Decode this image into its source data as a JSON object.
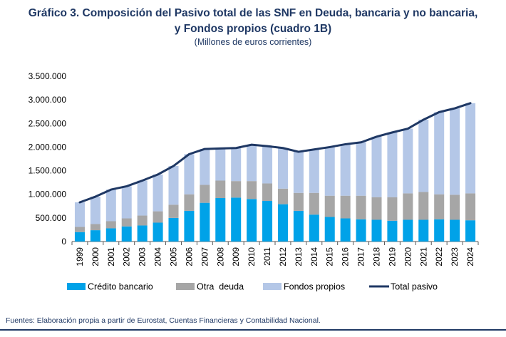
{
  "header": {
    "title_line1": "Gráfico 3. Composición del Pasivo total de las SNF en Deuda, bancaria y no bancaria,",
    "title_line2": "y Fondos propios (cuadro 1B)",
    "subtitle": "(Millones de euros corrientes)"
  },
  "footer": {
    "source": "Fuentes: Elaboración propia a partir de Eurostat, Cuentas Financieras y Contabilidad Nacional."
  },
  "chart_data": {
    "type": "bar",
    "stacked": true,
    "title": "Gráfico 3. Composición del Pasivo total de las SNF en Deuda, bancaria y no bancaria, y Fondos propios (cuadro 1B)",
    "subtitle": "(Millones de euros corrientes)",
    "ylim": [
      0,
      3500000
    ],
    "yticks": [
      "0",
      "500.000",
      "1.000.000",
      "1.500.000",
      "2.000.000",
      "2.500.000",
      "3.000.000",
      "3.500.000"
    ],
    "categories": [
      "1999",
      "2000",
      "2001",
      "2002",
      "2003",
      "2004",
      "2005",
      "2006",
      "2007",
      "2008",
      "2009",
      "2010",
      "2011",
      "2012",
      "2013",
      "2014",
      "2015",
      "2016",
      "2017",
      "2018",
      "2019",
      "2020",
      "2021",
      "2022",
      "2023",
      "2024"
    ],
    "series": [
      {
        "name": "Crédito bancario",
        "color": "#00a2e8",
        "kind": "bar",
        "values": [
          200000,
          240000,
          280000,
          320000,
          340000,
          400000,
          500000,
          650000,
          820000,
          920000,
          930000,
          900000,
          860000,
          790000,
          650000,
          570000,
          520000,
          490000,
          470000,
          460000,
          440000,
          460000,
          460000,
          470000,
          460000,
          450000
        ]
      },
      {
        "name": "Otra  deuda",
        "color": "#a6a6a6",
        "kind": "bar",
        "values": [
          110000,
          130000,
          150000,
          170000,
          210000,
          240000,
          280000,
          350000,
          380000,
          370000,
          350000,
          380000,
          370000,
          330000,
          380000,
          460000,
          450000,
          480000,
          500000,
          480000,
          500000,
          560000,
          590000,
          530000,
          530000,
          570000
        ]
      },
      {
        "name": "Fondos propios",
        "color": "#b4c7e7",
        "kind": "bar",
        "values": [
          520000,
          580000,
          670000,
          680000,
          740000,
          780000,
          820000,
          850000,
          760000,
          680000,
          700000,
          770000,
          790000,
          860000,
          870000,
          920000,
          1030000,
          1090000,
          1130000,
          1280000,
          1370000,
          1370000,
          1530000,
          1740000,
          1830000,
          1910000
        ]
      },
      {
        "name": "Total pasivo",
        "color": "#1f3864",
        "kind": "line",
        "values": [
          830000,
          950000,
          1100000,
          1170000,
          1290000,
          1420000,
          1600000,
          1850000,
          1960000,
          1970000,
          1980000,
          2050000,
          2020000,
          1980000,
          1900000,
          1950000,
          2000000,
          2060000,
          2100000,
          2220000,
          2310000,
          2390000,
          2580000,
          2740000,
          2820000,
          2930000
        ]
      }
    ]
  }
}
